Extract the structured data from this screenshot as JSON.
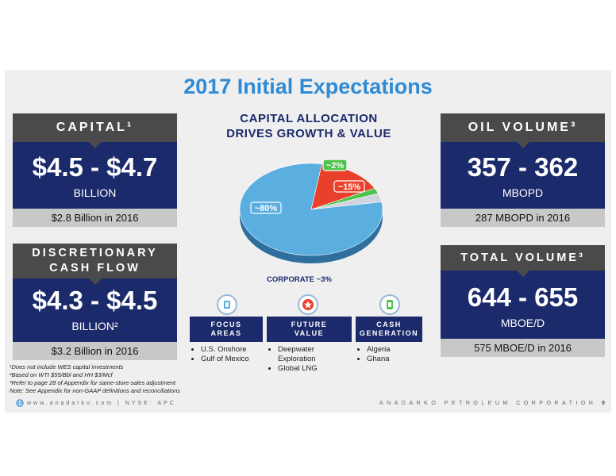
{
  "title": "2017 Initial Expectations",
  "capital": {
    "header": "CAPITAL¹",
    "value": "$4.5 - $4.7",
    "unit": "BILLION",
    "prior": "$2.8 Billion in 2016"
  },
  "dcf": {
    "header_line1": "DISCRETIONARY",
    "header_line2": "CASH FLOW",
    "value": "$4.3 - $4.5",
    "unit": "BILLION²",
    "prior": "$3.2 Billion in 2016"
  },
  "oil": {
    "header": "OIL VOLUME³",
    "value": "357 - 362",
    "unit": "MBOPD",
    "prior": "287 MBOPD in 2016"
  },
  "total": {
    "header": "TOTAL VOLUME³",
    "value": "644 - 655",
    "unit": "MBOE/D",
    "prior": "575 MBOE/D in 2016"
  },
  "chart": {
    "title_line1": "CAPITAL ALLOCATION",
    "title_line2": "DRIVES GROWTH & VALUE",
    "corporate_label": "CORPORATE ~3%",
    "slices": [
      {
        "label": "~80%",
        "value": 80,
        "color": "#5aaee0"
      },
      {
        "label": "~15%",
        "value": 15,
        "color": "#e8402a"
      },
      {
        "label": "~2%",
        "value": 2,
        "color": "#4cc34a"
      },
      {
        "label": "",
        "value": 3,
        "color": "#cfd6de"
      }
    ]
  },
  "columns": [
    {
      "label_line1": "FOCUS",
      "label_line2": "AREAS",
      "items": [
        "U.S. Onshore",
        "Gulf of Mexico"
      ],
      "icon_color": "#5aaee0"
    },
    {
      "label_line1": "FUTURE",
      "label_line2": "VALUE",
      "items": [
        "Deepwater Exploration",
        "Global LNG"
      ],
      "icon_color": "#e8402a"
    },
    {
      "label_line1": "CASH",
      "label_line2": "GENERATION",
      "items": [
        "Algeria",
        "Ghana"
      ],
      "icon_color": "#4cc34a"
    }
  ],
  "footnotes": [
    "¹Does not include WES capital investments",
    "²Based on WTI $55/Bbl and HH $3/Mcf",
    "³Refer to page 28 of Appendix for same-store-sales adjustment",
    "Note: See Appendix for non-GAAP definitions and reconciliations"
  ],
  "footer": {
    "left": "www.anadarko.com | NYSE: APC",
    "right": "ANADARKO PETROLEUM CORPORATION",
    "page": "9"
  }
}
